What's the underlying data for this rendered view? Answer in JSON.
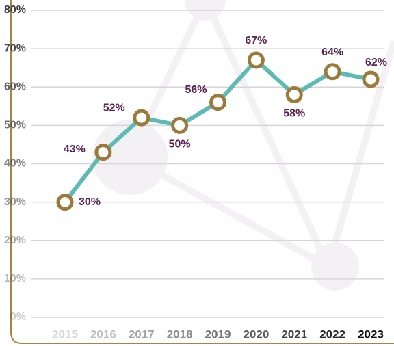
{
  "chart_data": {
    "type": "line",
    "categories": [
      "2015",
      "2016",
      "2017",
      "2018",
      "2019",
      "2020",
      "2021",
      "2022",
      "2023"
    ],
    "series": [
      {
        "color": "#5cbcb3",
        "values": [
          30,
          43,
          52,
          50,
          56,
          67,
          58,
          64,
          62
        ],
        "value_labels": [
          "30%",
          "43%",
          "52%",
          "50%",
          "56%",
          "67%",
          "58%",
          "64%",
          "62%"
        ]
      }
    ],
    "ylim": [
      0,
      80
    ],
    "yticks": [
      {
        "value": 0,
        "label": "0%"
      },
      {
        "value": 10,
        "label": "10%"
      },
      {
        "value": 20,
        "label": "20%"
      },
      {
        "value": 30,
        "label": "30%"
      },
      {
        "value": 40,
        "label": "40%"
      },
      {
        "value": 50,
        "label": "50%"
      },
      {
        "value": 60,
        "label": "60%"
      },
      {
        "value": 70,
        "label": "70%"
      },
      {
        "value": 80,
        "label": "80%"
      }
    ],
    "grid": true
  }
}
